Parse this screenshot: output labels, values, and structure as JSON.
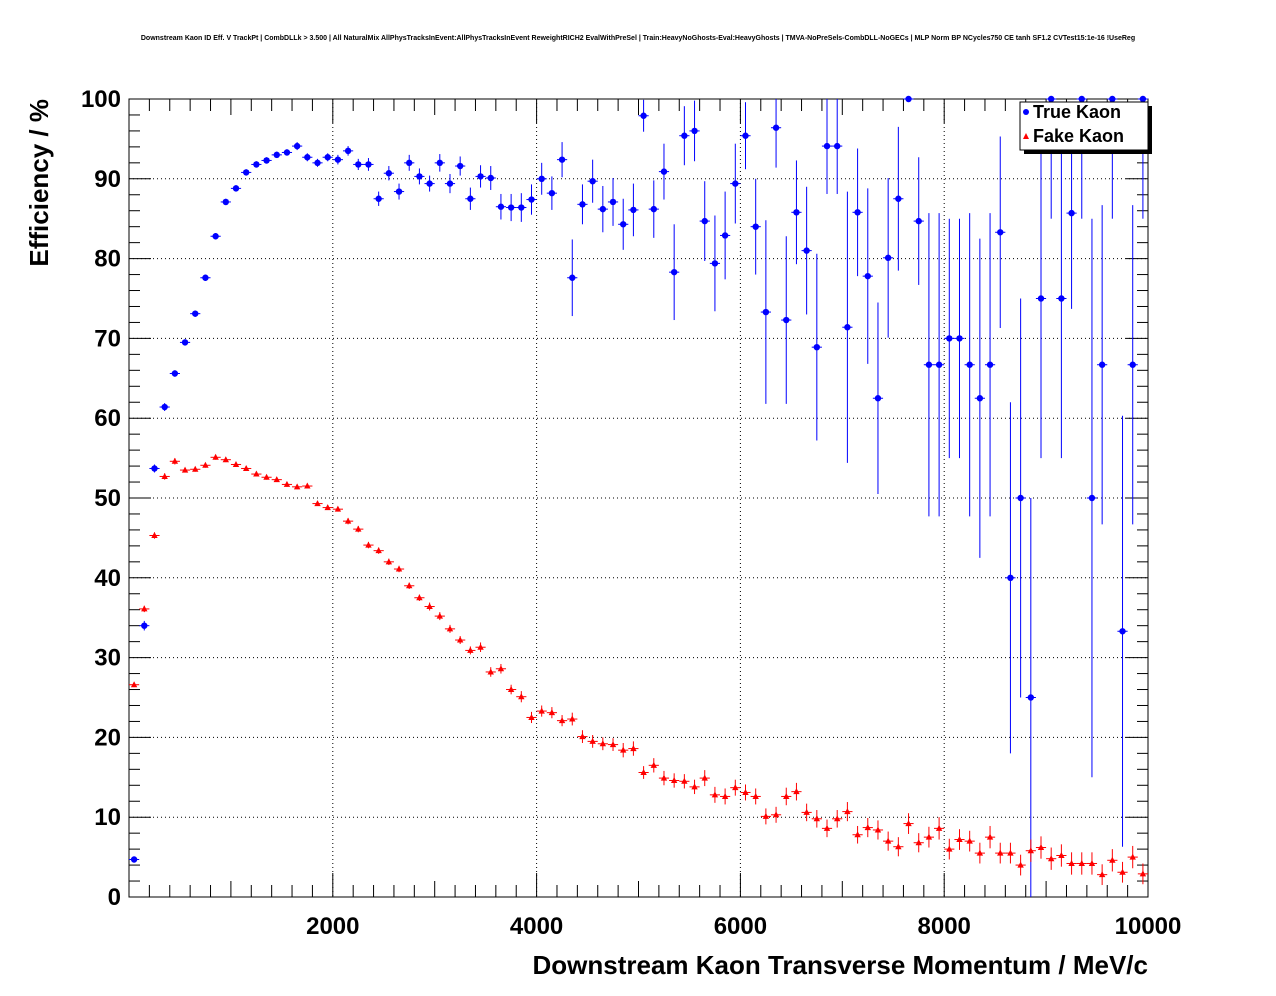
{
  "title": "Downstream Kaon ID Eff. V TrackPt | CombDLLk > 3.500 | All NaturalMix AllPhysTracksInEvent:AllPhysTracksInEvent ReweightRICH2 EvalWithPreSel | Train:HeavyNoGhosts-Eval:HeavyGhosts | TMVA-NoPreSels-CombDLL-NoGECs | MLP Norm BP NCycles750 CE tanh SF1.2 CVTest15:1e-16 !UseReg",
  "chart_data": {
    "type": "scatter",
    "title": "Downstream Kaon ID Eff. V TrackPt | CombDLLk > 3.500 | All NaturalMix AllPhysTracksInEvent:AllPhysTracksInEvent ReweightRICH2 EvalWithPreSel | Train:HeavyNoGhosts-Eval:HeavyGhosts | TMVA-NoPreSels-CombDLL-NoGECs | MLP Norm BP NCycles750 CE tanh SF1.2 CVTest15:1e-16 !UseReg",
    "xlabel": "Downstream Kaon Transverse Momentum / MeV/c",
    "ylabel": "Efficiency / %",
    "xlim": [
      0,
      10000
    ],
    "ylim": [
      0,
      100
    ],
    "x_ticks": [
      "2000",
      "4000",
      "6000",
      "8000",
      "10000"
    ],
    "y_ticks": [
      "0",
      "10",
      "20",
      "30",
      "40",
      "50",
      "60",
      "70",
      "80",
      "90",
      "100"
    ],
    "grid": true,
    "legend_position": "top-right",
    "colors": {
      "true_kaon": "#0000ff",
      "fake_kaon": "#ff0000"
    },
    "series": [
      {
        "name": "True Kaon",
        "marker": "circle",
        "x": [
          50,
          150,
          250,
          350,
          450,
          550,
          650,
          750,
          850,
          950,
          1050,
          1150,
          1250,
          1350,
          1450,
          1550,
          1650,
          1750,
          1850,
          1950,
          2050,
          2150,
          2250,
          2350,
          2450,
          2550,
          2650,
          2750,
          2850,
          2950,
          3050,
          3150,
          3250,
          3350,
          3450,
          3550,
          3650,
          3750,
          3850,
          3950,
          4050,
          4150,
          4250,
          4350,
          4450,
          4550,
          4650,
          4750,
          4850,
          4950,
          5050,
          5150,
          5250,
          5350,
          5450,
          5550,
          5650,
          5750,
          5850,
          5950,
          6050,
          6150,
          6250,
          6350,
          6450,
          6550,
          6650,
          6750,
          6850,
          6950,
          7050,
          7150,
          7250,
          7350,
          7450,
          7550,
          7650,
          7750,
          7850,
          7950,
          8050,
          8150,
          8250,
          8350,
          8450,
          8550,
          8650,
          8750,
          8850,
          8950,
          9050,
          9150,
          9250,
          9350,
          9450,
          9550,
          9650,
          9750,
          9850,
          9950
        ],
        "y": [
          4.7,
          34,
          53.7,
          61.4,
          65.6,
          69.5,
          73.1,
          77.6,
          82.8,
          87.1,
          88.8,
          90.8,
          91.8,
          92.3,
          93,
          93.3,
          94.1,
          92.7,
          92,
          92.7,
          92.4,
          93.5,
          91.8,
          91.8,
          87.5,
          90.7,
          88.4,
          92,
          90.3,
          89.4,
          92,
          89.4,
          91.6,
          87.5,
          90.3,
          90.1,
          86.5,
          86.4,
          86.4,
          87.4,
          90,
          88.2,
          92.4,
          77.6,
          86.8,
          89.7,
          86.2,
          87.1,
          84.3,
          86.1,
          97.9,
          86.2,
          90.9,
          78.3,
          95.4,
          96,
          84.7,
          79.4,
          82.9,
          89.4,
          95.4,
          84,
          73.3,
          96.4,
          72.3,
          85.8,
          81,
          68.9,
          94.1,
          94.1,
          71.4,
          85.8,
          77.8,
          62.5,
          80.1,
          87.5,
          100,
          84.7,
          66.7,
          66.7,
          70,
          70,
          66.7,
          62.5,
          66.7,
          83.3,
          40,
          50,
          25,
          75,
          100,
          75,
          85.7,
          100,
          50,
          66.7,
          100,
          33.3,
          66.7,
          100
        ],
        "yerr": [
          0.3,
          0.6,
          0.5,
          0.5,
          0.4,
          0.4,
          0.4,
          0.4,
          0.4,
          0.4,
          0.4,
          0.4,
          0.4,
          0.4,
          0.4,
          0.4,
          0.5,
          0.5,
          0.5,
          0.5,
          0.6,
          0.6,
          0.7,
          0.8,
          0.9,
          0.9,
          1,
          1,
          1,
          1,
          1.1,
          1.2,
          1.2,
          1.4,
          1.4,
          1.5,
          1.6,
          1.7,
          1.8,
          1.9,
          2,
          2.1,
          2.2,
          4.8,
          2.5,
          2.7,
          2.9,
          3,
          3.2,
          3.3,
          2,
          3.6,
          3.5,
          6,
          3.7,
          3.8,
          5,
          6,
          5.5,
          5,
          4.2,
          6,
          11.5,
          5,
          10.5,
          6.5,
          8,
          11.7,
          6,
          6,
          17,
          8,
          11,
          12,
          10,
          9,
          0,
          8,
          19,
          19,
          15,
          15,
          19,
          20,
          19,
          12,
          22,
          25,
          25,
          20,
          15,
          20,
          12,
          15,
          35,
          20,
          15,
          27,
          20,
          15
        ]
      },
      {
        "name": "Fake Kaon",
        "marker": "triangle",
        "x": [
          50,
          150,
          250,
          350,
          450,
          550,
          650,
          750,
          850,
          950,
          1050,
          1150,
          1250,
          1350,
          1450,
          1550,
          1650,
          1750,
          1850,
          1950,
          2050,
          2150,
          2250,
          2350,
          2450,
          2550,
          2650,
          2750,
          2850,
          2950,
          3050,
          3150,
          3250,
          3350,
          3450,
          3550,
          3650,
          3750,
          3850,
          3950,
          4050,
          4150,
          4250,
          4350,
          4450,
          4550,
          4650,
          4750,
          4850,
          4950,
          5050,
          5150,
          5250,
          5350,
          5450,
          5550,
          5650,
          5750,
          5850,
          5950,
          6050,
          6150,
          6250,
          6350,
          6450,
          6550,
          6650,
          6750,
          6850,
          6950,
          7050,
          7150,
          7250,
          7350,
          7450,
          7550,
          7650,
          7750,
          7850,
          7950,
          8050,
          8150,
          8250,
          8350,
          8450,
          8550,
          8650,
          8750,
          8850,
          8950,
          9050,
          9150,
          9250,
          9350,
          9450,
          9550,
          9650,
          9750,
          9850,
          9950
        ],
        "y": [
          26.6,
          36.1,
          45.3,
          52.7,
          54.6,
          53.5,
          53.6,
          54.1,
          55.1,
          54.8,
          54.2,
          53.7,
          53,
          52.6,
          52.3,
          51.7,
          51.4,
          51.5,
          49.3,
          48.8,
          48.6,
          47.1,
          46.1,
          44.1,
          43.4,
          42,
          41.1,
          39,
          37.5,
          36.4,
          35.2,
          33.6,
          32.2,
          30.9,
          31.3,
          28.2,
          28.6,
          26,
          25.1,
          22.5,
          23.3,
          23.1,
          22.1,
          22.3,
          20.1,
          19.5,
          19.2,
          19.1,
          18.4,
          18.6,
          15.6,
          16.5,
          14.9,
          14.6,
          14.5,
          13.8,
          14.9,
          12.8,
          12.6,
          13.7,
          13.1,
          12.6,
          10.1,
          10.3,
          12.6,
          13.2,
          10.6,
          9.8,
          8.6,
          9.8,
          10.7,
          7.8,
          8.7,
          8.4,
          7,
          6.3,
          9.2,
          6.8,
          7.5,
          8.6,
          6,
          7.2,
          7,
          5.5,
          7.5,
          5.5,
          5.5,
          4,
          5.8,
          6.2,
          4.8,
          5.2,
          4.2,
          4.2,
          4.2,
          2.8,
          4.6,
          3.1,
          5,
          2.9
        ],
        "yerr": [
          0.3,
          0.4,
          0.4,
          0.4,
          0.4,
          0.3,
          0.3,
          0.3,
          0.3,
          0.3,
          0.3,
          0.3,
          0.3,
          0.3,
          0.3,
          0.3,
          0.3,
          0.3,
          0.3,
          0.3,
          0.3,
          0.4,
          0.4,
          0.4,
          0.4,
          0.4,
          0.4,
          0.4,
          0.4,
          0.5,
          0.5,
          0.5,
          0.5,
          0.5,
          0.6,
          0.6,
          0.6,
          0.6,
          0.7,
          0.7,
          0.7,
          0.7,
          0.7,
          0.8,
          0.8,
          0.8,
          0.8,
          0.8,
          0.9,
          0.9,
          0.8,
          0.9,
          0.9,
          0.9,
          0.9,
          0.9,
          1,
          1,
          1,
          1,
          1,
          1,
          1,
          1,
          1.1,
          1.1,
          1.1,
          1.1,
          1.1,
          1.1,
          1.2,
          1.1,
          1.2,
          1.2,
          1.2,
          1.2,
          1.3,
          1.2,
          1.3,
          1.4,
          1.3,
          1.3,
          1.3,
          1.3,
          1.4,
          1.3,
          1.3,
          1.3,
          1.4,
          1.4,
          1.4,
          1.4,
          1.4,
          1.4,
          1.4,
          1.3,
          1.4,
          1.3,
          1.4,
          1.3
        ]
      }
    ]
  }
}
